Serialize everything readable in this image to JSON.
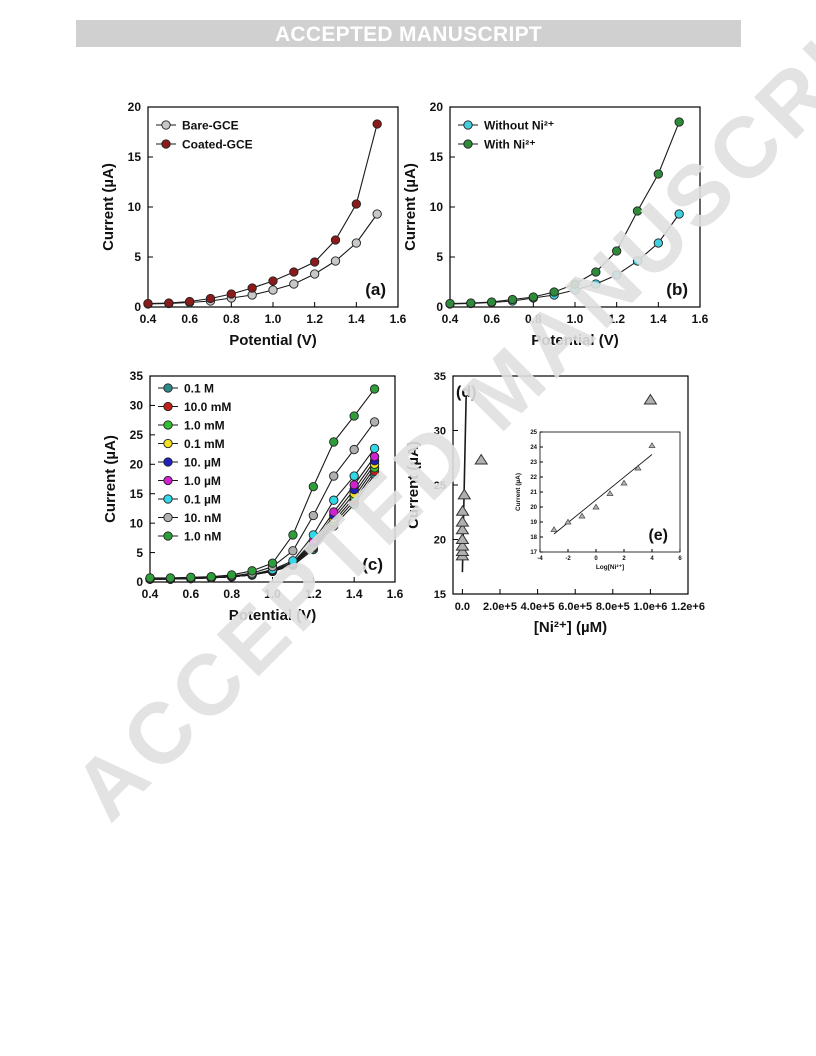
{
  "banner": {
    "label": "ACCEPTED MANUSCRIPT"
  },
  "watermark": {
    "text": "ACCEPTED MANUSCRIPT"
  },
  "colors": {
    "series_a": [
      "#c8c8c8",
      "#8b1a1a"
    ],
    "series_b": [
      "#40d0e0",
      "#2e8b3a"
    ],
    "series_c": [
      "#2e8b8b",
      "#c0201a",
      "#30c030",
      "#f0e020",
      "#2020c0",
      "#d020d0",
      "#30d8e8",
      "#b0b0b0",
      "#2e9e3a"
    ],
    "triangle": "#b0b0b0"
  },
  "chart_data": [
    {
      "panel": "(a)",
      "type": "line",
      "xlabel": "Potential (V)",
      "ylabel": "Current (µA)",
      "xlim": [
        0.4,
        1.6
      ],
      "ylim": [
        0,
        20
      ],
      "xticks": [
        "0.4",
        "0.6",
        "0.8",
        "1.0",
        "1.2",
        "1.4",
        "1.6"
      ],
      "yticks": [
        "0",
        "5",
        "10",
        "15",
        "20"
      ],
      "legend_position": "top-left",
      "x": [
        0.4,
        0.5,
        0.6,
        0.7,
        0.8,
        0.9,
        1.0,
        1.1,
        1.2,
        1.3,
        1.4,
        1.5
      ],
      "series": [
        {
          "name": "Bare-GCE",
          "values": [
            0.3,
            0.35,
            0.45,
            0.6,
            0.9,
            1.2,
            1.7,
            2.3,
            3.3,
            4.6,
            6.4,
            9.3
          ]
        },
        {
          "name": "Coated-GCE",
          "values": [
            0.35,
            0.4,
            0.55,
            0.85,
            1.3,
            1.9,
            2.6,
            3.5,
            4.5,
            6.7,
            10.3,
            18.3
          ]
        }
      ]
    },
    {
      "panel": "(b)",
      "type": "line",
      "xlabel": "Potential (V)",
      "ylabel": "Current (µA)",
      "xlim": [
        0.4,
        1.6
      ],
      "ylim": [
        0,
        20
      ],
      "xticks": [
        "0.4",
        "0.6",
        "0.8",
        "1.0",
        "1.2",
        "1.4",
        "1.6"
      ],
      "yticks": [
        "0",
        "5",
        "10",
        "15",
        "20"
      ],
      "legend_position": "top-left",
      "x": [
        0.4,
        0.5,
        0.6,
        0.7,
        0.8,
        0.9,
        1.0,
        1.1,
        1.2,
        1.3,
        1.4,
        1.5
      ],
      "series": [
        {
          "name": "Without Ni²⁺",
          "values": [
            0.3,
            0.35,
            0.45,
            0.6,
            0.9,
            1.2,
            1.7,
            2.3,
            3.2,
            4.6,
            6.4,
            9.3
          ]
        },
        {
          "name": "With Ni²⁺",
          "values": [
            0.35,
            0.4,
            0.5,
            0.75,
            1.0,
            1.5,
            2.3,
            3.5,
            5.6,
            9.6,
            13.3,
            18.5
          ]
        }
      ]
    },
    {
      "panel": "(c)",
      "type": "line",
      "xlabel": "Potential (V)",
      "ylabel": "Current (µA)",
      "xlim": [
        0.4,
        1.6
      ],
      "ylim": [
        0,
        35
      ],
      "xticks": [
        "0.4",
        "0.6",
        "0.8",
        "1.0",
        "1.2",
        "1.4",
        "1.6"
      ],
      "yticks": [
        "0",
        "5",
        "10",
        "15",
        "20",
        "25",
        "30",
        "35"
      ],
      "legend_position": "top-left",
      "x": [
        0.4,
        0.5,
        0.6,
        0.7,
        0.8,
        0.9,
        1.0,
        1.1,
        1.2,
        1.3,
        1.4,
        1.5
      ],
      "series": [
        {
          "name": "0.1 M",
          "values": [
            0.5,
            0.5,
            0.6,
            0.7,
            0.9,
            1.2,
            1.8,
            2.8,
            5.5,
            9.5,
            13.2,
            18.3
          ]
        },
        {
          "name": "10.0 mM",
          "values": [
            0.5,
            0.5,
            0.6,
            0.7,
            0.9,
            1.2,
            1.8,
            2.9,
            5.8,
            9.9,
            13.8,
            18.8
          ]
        },
        {
          "name": "1.0 mM",
          "values": [
            0.5,
            0.5,
            0.6,
            0.7,
            0.9,
            1.2,
            1.9,
            3.0,
            6.0,
            10.3,
            14.4,
            19.4
          ]
        },
        {
          "name": "0.1 mM",
          "values": [
            0.5,
            0.5,
            0.6,
            0.7,
            0.9,
            1.2,
            1.9,
            3.1,
            6.3,
            10.8,
            15.0,
            20.0
          ]
        },
        {
          "name": "10. µM",
          "values": [
            0.5,
            0.5,
            0.6,
            0.7,
            0.9,
            1.2,
            1.9,
            3.2,
            6.6,
            11.3,
            15.7,
            20.6
          ]
        },
        {
          "name": "1.0 µM",
          "values": [
            0.5,
            0.5,
            0.6,
            0.7,
            0.9,
            1.2,
            2.0,
            3.3,
            7.0,
            11.9,
            16.5,
            21.3
          ]
        },
        {
          "name": "0.1 µM",
          "values": [
            0.5,
            0.5,
            0.6,
            0.7,
            0.9,
            1.3,
            2.1,
            3.6,
            8.0,
            13.9,
            18.0,
            22.7
          ]
        },
        {
          "name": "10. nM",
          "values": [
            0.6,
            0.6,
            0.7,
            0.8,
            1.0,
            1.5,
            2.6,
            5.3,
            11.3,
            18.0,
            22.5,
            27.2
          ]
        },
        {
          "name": "1.0 nM",
          "values": [
            0.7,
            0.7,
            0.8,
            0.9,
            1.2,
            1.9,
            3.2,
            8.0,
            16.2,
            23.8,
            28.2,
            32.8
          ]
        }
      ]
    },
    {
      "panel": "(d)",
      "type": "scatter",
      "xlabel": "[Ni²⁺] (µM)",
      "ylabel": "Current (µA)",
      "xlim": [
        -50000,
        1200000
      ],
      "ylim": [
        15,
        35
      ],
      "xticks": [
        "0.0",
        "2.0e+5",
        "4.0e+5",
        "6.0e+5",
        "8.0e+5",
        "1.0e+6",
        "1.2e+6"
      ],
      "yticks": [
        "15",
        "20",
        "25",
        "30",
        "35"
      ],
      "x": [
        0.001,
        0.01,
        0.1,
        1,
        10,
        100,
        1000,
        10000,
        100000,
        1000000
      ],
      "values": [
        18.5,
        18.9,
        19.4,
        20.0,
        20.9,
        21.6,
        22.6,
        24.1,
        27.3,
        32.8
      ],
      "fit_line": {
        "x": [
          0,
          20000
        ],
        "y": [
          17,
          33.2
        ]
      }
    },
    {
      "panel": "(e)",
      "type": "scatter",
      "xlabel": "Log[Ni²⁺]",
      "ylabel": "Current (µA)",
      "xlim": [
        -4,
        6
      ],
      "ylim": [
        17,
        25
      ],
      "xticks": [
        "-4",
        "-2",
        "0",
        "2",
        "4",
        "6"
      ],
      "yticks": [
        "17",
        "18",
        "19",
        "20",
        "21",
        "22",
        "23",
        "24",
        "25"
      ],
      "x": [
        -3,
        -2,
        -1,
        0,
        1,
        2,
        3,
        4
      ],
      "values": [
        18.5,
        19.0,
        19.4,
        20.0,
        20.9,
        21.6,
        22.6,
        24.1
      ],
      "fit_line": {
        "x": [
          -3,
          4
        ],
        "y": [
          18.2,
          23.5
        ]
      }
    }
  ]
}
